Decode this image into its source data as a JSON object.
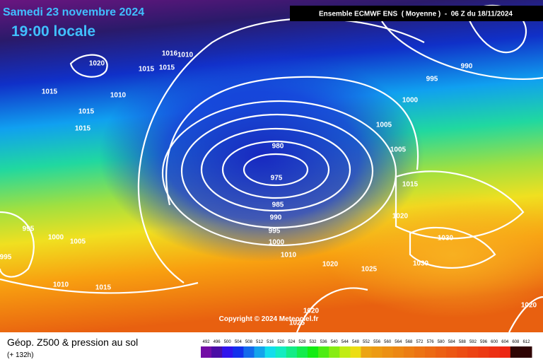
{
  "header": {
    "date": "Samedi 23 novembre 2024",
    "time": "19:00 locale",
    "model": "Ensemble ECMWF ENS  ( Moyenne )  -  06 Z du 18/11/2024"
  },
  "isobar_labels": [
    "1020",
    "1016",
    "1010",
    "1015",
    "1015",
    "1015",
    "1010",
    "1015",
    "1015",
    "990",
    "995",
    "1000",
    "1005",
    "980",
    "975",
    "985",
    "990",
    "995",
    "1000",
    "1005",
    "1015",
    "1020",
    "1030",
    "1030",
    "1025",
    "1020",
    "1010",
    "995",
    "1000",
    "1005",
    "995",
    "1010",
    "1015",
    "1020",
    "1020",
    "1025"
  ],
  "copyright": "Copyright © 2024 Meteociel.fr",
  "footer": {
    "title": "Géop. Z500 & pression au sol",
    "lead": "(+ 132h)"
  },
  "colorbar": {
    "labels": [
      492,
      496,
      500,
      504,
      508,
      512,
      516,
      520,
      524,
      528,
      532,
      536,
      540,
      544,
      548,
      552,
      556,
      560,
      564,
      568,
      572,
      576,
      580,
      584,
      588,
      592,
      596,
      600,
      604,
      608,
      612
    ]
  }
}
